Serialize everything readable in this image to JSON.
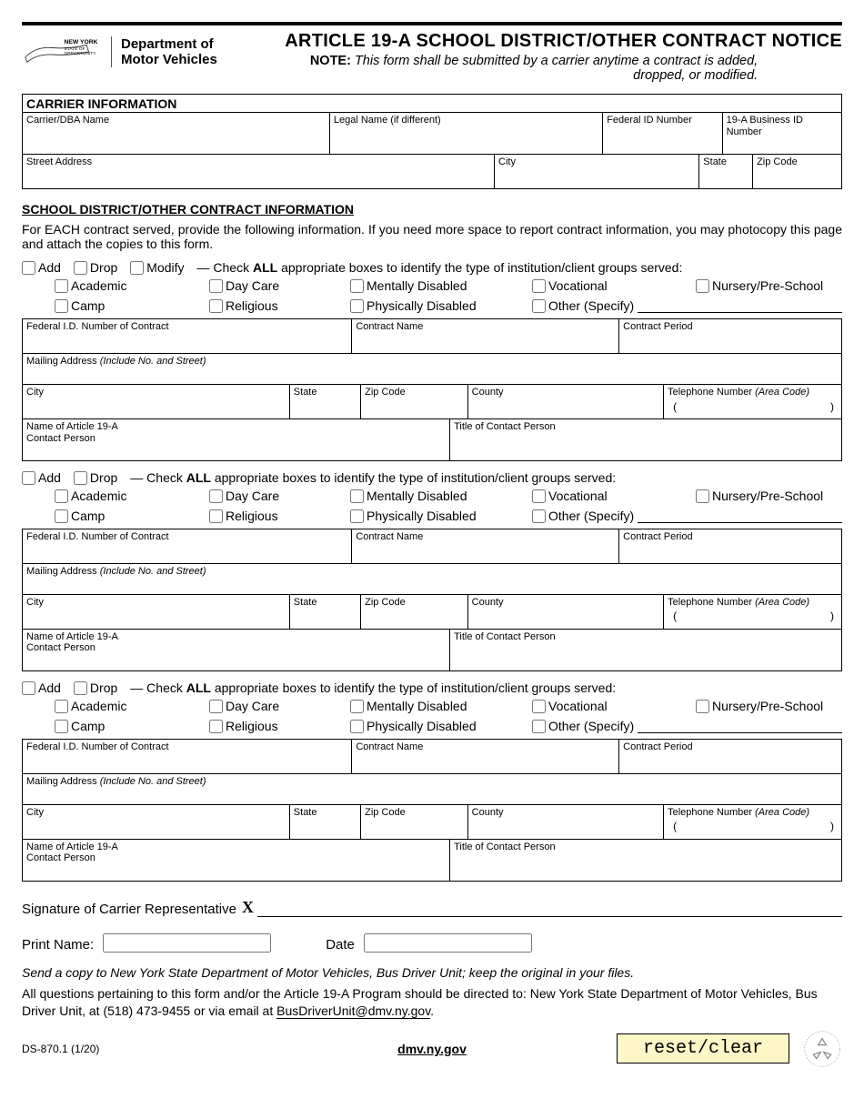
{
  "logo": {
    "line1": "NEW YORK",
    "line2": "STATE OF",
    "line3": "OPPORTUNITY."
  },
  "dept": {
    "line1": "Department of",
    "line2": "Motor Vehicles"
  },
  "title": "ARTICLE 19-A SCHOOL DISTRICT/OTHER CONTRACT NOTICE",
  "note_label": "NOTE:",
  "note": "This form shall be submitted by a carrier anytime a contract is added, dropped, or modified.",
  "carrier_section": "CARRIER INFORMATION",
  "carrier_fields": {
    "dba": "Carrier/DBA Name",
    "legal": "Legal Name (if different)",
    "fedid": "Federal ID Number",
    "busid": "19-A Business ID Number",
    "street": "Street Address",
    "city": "City",
    "state": "State",
    "zip": "Zip Code"
  },
  "school_section": "SCHOOL DISTRICT/OTHER CONTRACT INFORMATION",
  "school_para": "For EACH contract served, provide the following information. If you need more space to report contract information, you may photocopy this page and attach the copies to this form.",
  "actions": {
    "add": "Add",
    "drop": "Drop",
    "modify": "Modify"
  },
  "check_instr_full": " — Check ",
  "check_all": "ALL",
  "check_instr2": " appropriate boxes to identify the type of institution/client groups served:",
  "types": {
    "academic": "Academic",
    "daycare": "Day Care",
    "mental": "Mentally Disabled",
    "vocational": "Vocational",
    "nursery": "Nursery/Pre-School",
    "camp": "Camp",
    "religious": "Religious",
    "physical": "Physically Disabled",
    "other": "Other (Specify)"
  },
  "contract_fields": {
    "fedid": "Federal I.D. Number of Contract",
    "name": "Contract Name",
    "period": "Contract Period",
    "mail": "Mailing Address ",
    "mail_i": "(Include No. and Street)",
    "city": "City",
    "state": "State",
    "zip": "Zip Code",
    "county": "County",
    "tel": "Telephone Number ",
    "tel_i": "(Area Code)",
    "contact": "Name of Article 19-A Contact Person",
    "title": "Title of Contact Person"
  },
  "sig_label": "Signature of Carrier Representative",
  "print_label": "Print Name:",
  "date_label": "Date",
  "footer_note": "Send a copy to New York State Department of Motor Vehicles, Bus Driver Unit; keep the original in your files.",
  "footer_text1": "All questions pertaining to this form and/or the Article 19-A Program should be directed to: New York State Department of Motor Vehicles, Bus Driver Unit, at (518) 473-9455 or via email at ",
  "footer_email": "BusDriverUnit@dmv.ny.gov",
  "footer_text2": ".",
  "form_id": "DS-870.1 (1/20)",
  "site": "dmv.ny.gov",
  "reset": "reset/clear",
  "block1_has_modify": true,
  "block2_has_modify": false,
  "block3_has_modify": false
}
